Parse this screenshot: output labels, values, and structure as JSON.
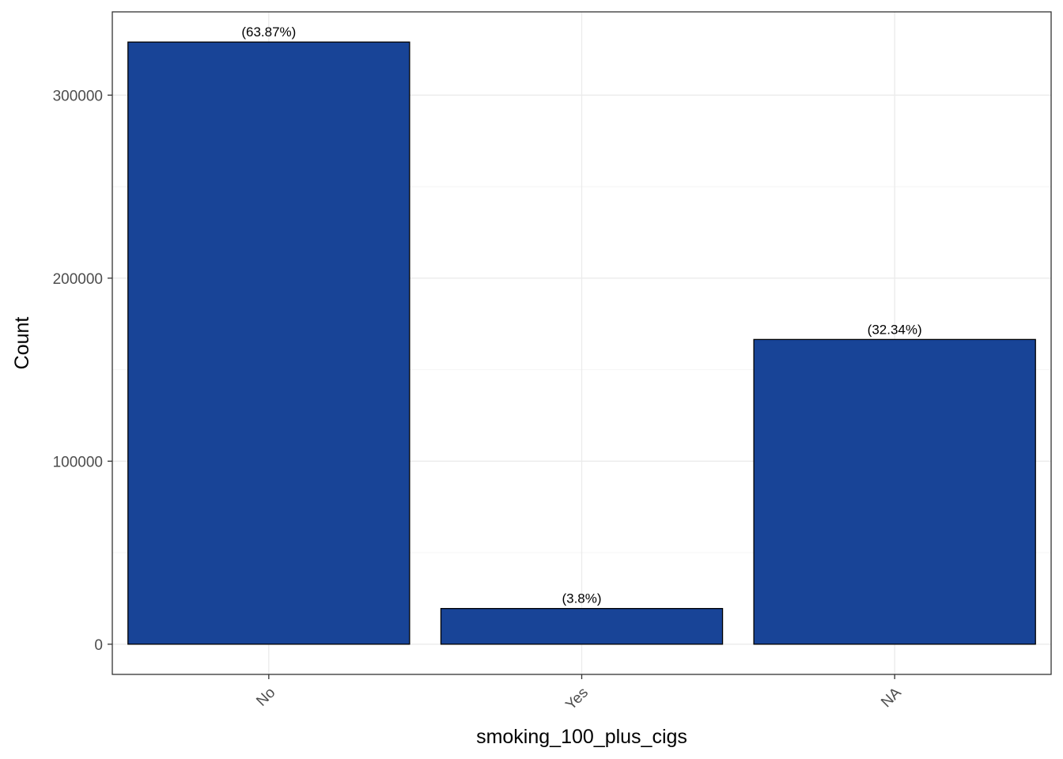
{
  "chart_data": {
    "type": "bar",
    "categories": [
      "No",
      "Yes",
      "NA"
    ],
    "values": [
      329000,
      19500,
      166500
    ],
    "data_labels": [
      "(63.87%)",
      "(3.8%)",
      "(32.34%)"
    ],
    "xlabel": "smoking_100_plus_cigs",
    "ylabel": "Count",
    "ylim": [
      -16500,
      345500
    ],
    "yticks": [
      0,
      100000,
      200000,
      300000
    ],
    "ytick_labels": [
      "0",
      "100000",
      "200000",
      "300000"
    ],
    "grid": true,
    "legend": "none",
    "x_tick_rotation_deg": 45,
    "colors": {
      "bar_fill": "#184497",
      "bar_outline": "#000000",
      "grid_major": "#ebebeb",
      "grid_minor": "#f4f4f4",
      "panel_border": "#333333",
      "tick_text": "#4d4d4d"
    }
  }
}
